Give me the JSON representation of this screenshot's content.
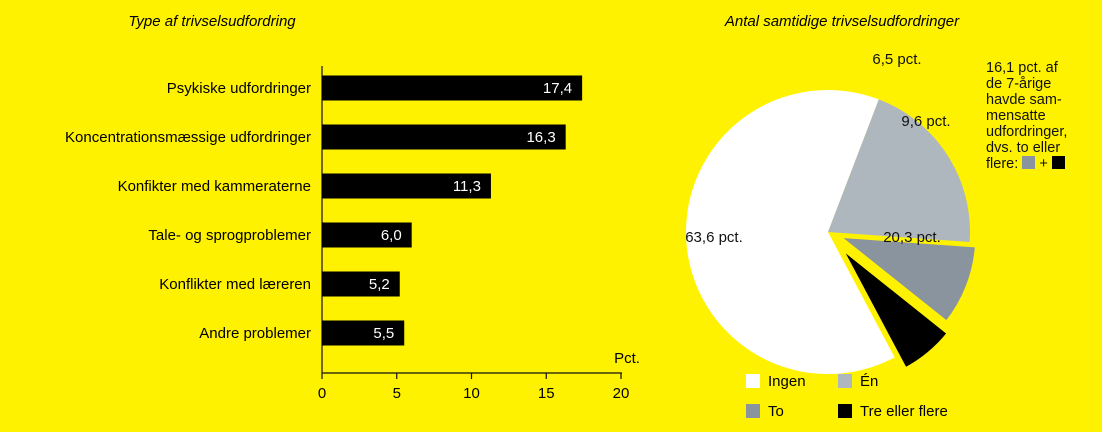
{
  "colors": {
    "background": "#fff200",
    "bar": "#000000",
    "pie_ingen": "#ffffff",
    "pie_en": "#aeb6be",
    "pie_to": "#8a949e",
    "pie_tre": "#000000"
  },
  "chart_data": [
    {
      "type": "bar",
      "orientation": "horizontal",
      "title": "Type af trivselsudfordring",
      "xlabel": "Pct.",
      "xlim": [
        0,
        20
      ],
      "xticks": [
        "0",
        "5",
        "10",
        "15",
        "20"
      ],
      "categories": [
        "Psykiske udfordringer",
        "Koncentrationsmæssige udfordringer",
        "Konfikter med kammeraterne",
        "Tale- og sprogproblemer",
        "Konflikter med læreren",
        "Andre problemer"
      ],
      "values": [
        17.4,
        16.3,
        11.3,
        6.0,
        5.2,
        5.5
      ],
      "value_labels": [
        "17,4",
        "16,3",
        "11,3",
        "6,0",
        "5,2",
        "5,5"
      ]
    },
    {
      "type": "pie",
      "title": "Antal samtidige trivselsudfordringer",
      "slices": [
        {
          "name": "Ingen",
          "value": 63.6,
          "label": "63,6 pct."
        },
        {
          "name": "Én",
          "value": 20.3,
          "label": "20,3 pct."
        },
        {
          "name": "To",
          "value": 9.6,
          "label": "9,6 pct."
        },
        {
          "name": "Tre eller flere",
          "value": 6.5,
          "label": "6,5 pct."
        }
      ],
      "legend": [
        "Ingen",
        "Én",
        "To",
        "Tre eller flere"
      ],
      "legend_placement": "bottom"
    }
  ],
  "note": {
    "text": "16,1 pct. af\nde 7-årige\nhavde sam-\nmensatte\nudfordringer,\ndvs. to eller\nflere:",
    "plus": "+"
  }
}
